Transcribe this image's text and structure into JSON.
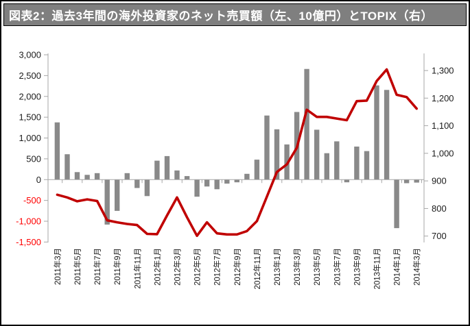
{
  "title": "図表2：過去3年間の海外投資家のネット売買額（左、10億円）とTOPIX（右）",
  "colors": {
    "title_bg": "#7f7f7f",
    "title_text": "#ffffff",
    "bar": "#898989",
    "line": "#c00000",
    "axis": "#a6a6a6",
    "tick_label": "#1a1a1a",
    "negative_tick_label": "#ff0000",
    "background": "#ffffff"
  },
  "chart_data": {
    "type": "bar",
    "subtype": "combo-bar-line-dual-axis",
    "title": "図表2：過去3年間の海外投資家のネット売買額（左、10億円）とTOPIX（右）",
    "grid": false,
    "legend_position": "none",
    "categories": [
      "2011年3月",
      "2011年4月",
      "2011年5月",
      "2011年6月",
      "2011年7月",
      "2011年8月",
      "2011年9月",
      "2011年10月",
      "2011年11月",
      "2011年12月",
      "2012年1月",
      "2012年2月",
      "2012年3月",
      "2012年4月",
      "2012年5月",
      "2012年6月",
      "2012年7月",
      "2012年8月",
      "2012年9月",
      "2012年10月",
      "2012年11月",
      "2012年12月",
      "2013年1月",
      "2013年2月",
      "2013年3月",
      "2013年4月",
      "2013年5月",
      "2013年6月",
      "2013年7月",
      "2013年8月",
      "2013年9月",
      "2013年10月",
      "2013年11月",
      "2013年12月",
      "2014年1月",
      "2014年2月",
      "2014年3月"
    ],
    "x_tick_labels_shown": [
      "2011年3月",
      "2011年5月",
      "2011年7月",
      "2011年9月",
      "2011年11月",
      "2012年1月",
      "2012年3月",
      "2012年5月",
      "2012年7月",
      "2012年9月",
      "2012年11月",
      "2013年1月",
      "2013年3月",
      "2013年5月",
      "2013年7月",
      "2013年9月",
      "2013年11月",
      "2014年1月",
      "2014年3月"
    ],
    "series": [
      {
        "name": "海外投資家のネット売買額（左、10億円）",
        "type": "bar",
        "axis": "left",
        "values": [
          1375,
          610,
          180,
          115,
          155,
          -1080,
          -750,
          155,
          -200,
          -395,
          455,
          565,
          220,
          85,
          -410,
          -165,
          -230,
          -95,
          -65,
          140,
          480,
          1540,
          1210,
          845,
          1625,
          2660,
          1200,
          635,
          920,
          -65,
          795,
          685,
          2265,
          2155,
          -1165,
          -85,
          -70
        ]
      },
      {
        "name": "TOPIX（右）",
        "type": "line",
        "axis": "right",
        "values": [
          850,
          840,
          826,
          833,
          827,
          757,
          750,
          744,
          740,
          708,
          707,
          775,
          840,
          768,
          701,
          750,
          710,
          706,
          706,
          718,
          754,
          843,
          932,
          960,
          1020,
          1158,
          1132,
          1132,
          1126,
          1120,
          1189,
          1191,
          1262,
          1304,
          1212,
          1204,
          1162
        ]
      }
    ],
    "left_axis": {
      "min": -1500,
      "max": 3000,
      "step": 500,
      "tick_values": [
        3000,
        2500,
        2000,
        1500,
        1000,
        500,
        0,
        -500,
        -1000,
        -1500
      ],
      "tick_labels": [
        "3,000",
        "2,500",
        "2,000",
        "1,500",
        "1,000",
        "500",
        "0",
        "-500",
        "-1,000",
        "-1,500"
      ]
    },
    "right_axis": {
      "min": 700,
      "max": 1300,
      "step": 100,
      "tick_values": [
        1300,
        1200,
        1100,
        1000,
        900,
        800,
        700
      ],
      "tick_labels": [
        "1,300",
        "1,200",
        "1,100",
        "1,000",
        "900",
        "800",
        "700"
      ]
    }
  }
}
